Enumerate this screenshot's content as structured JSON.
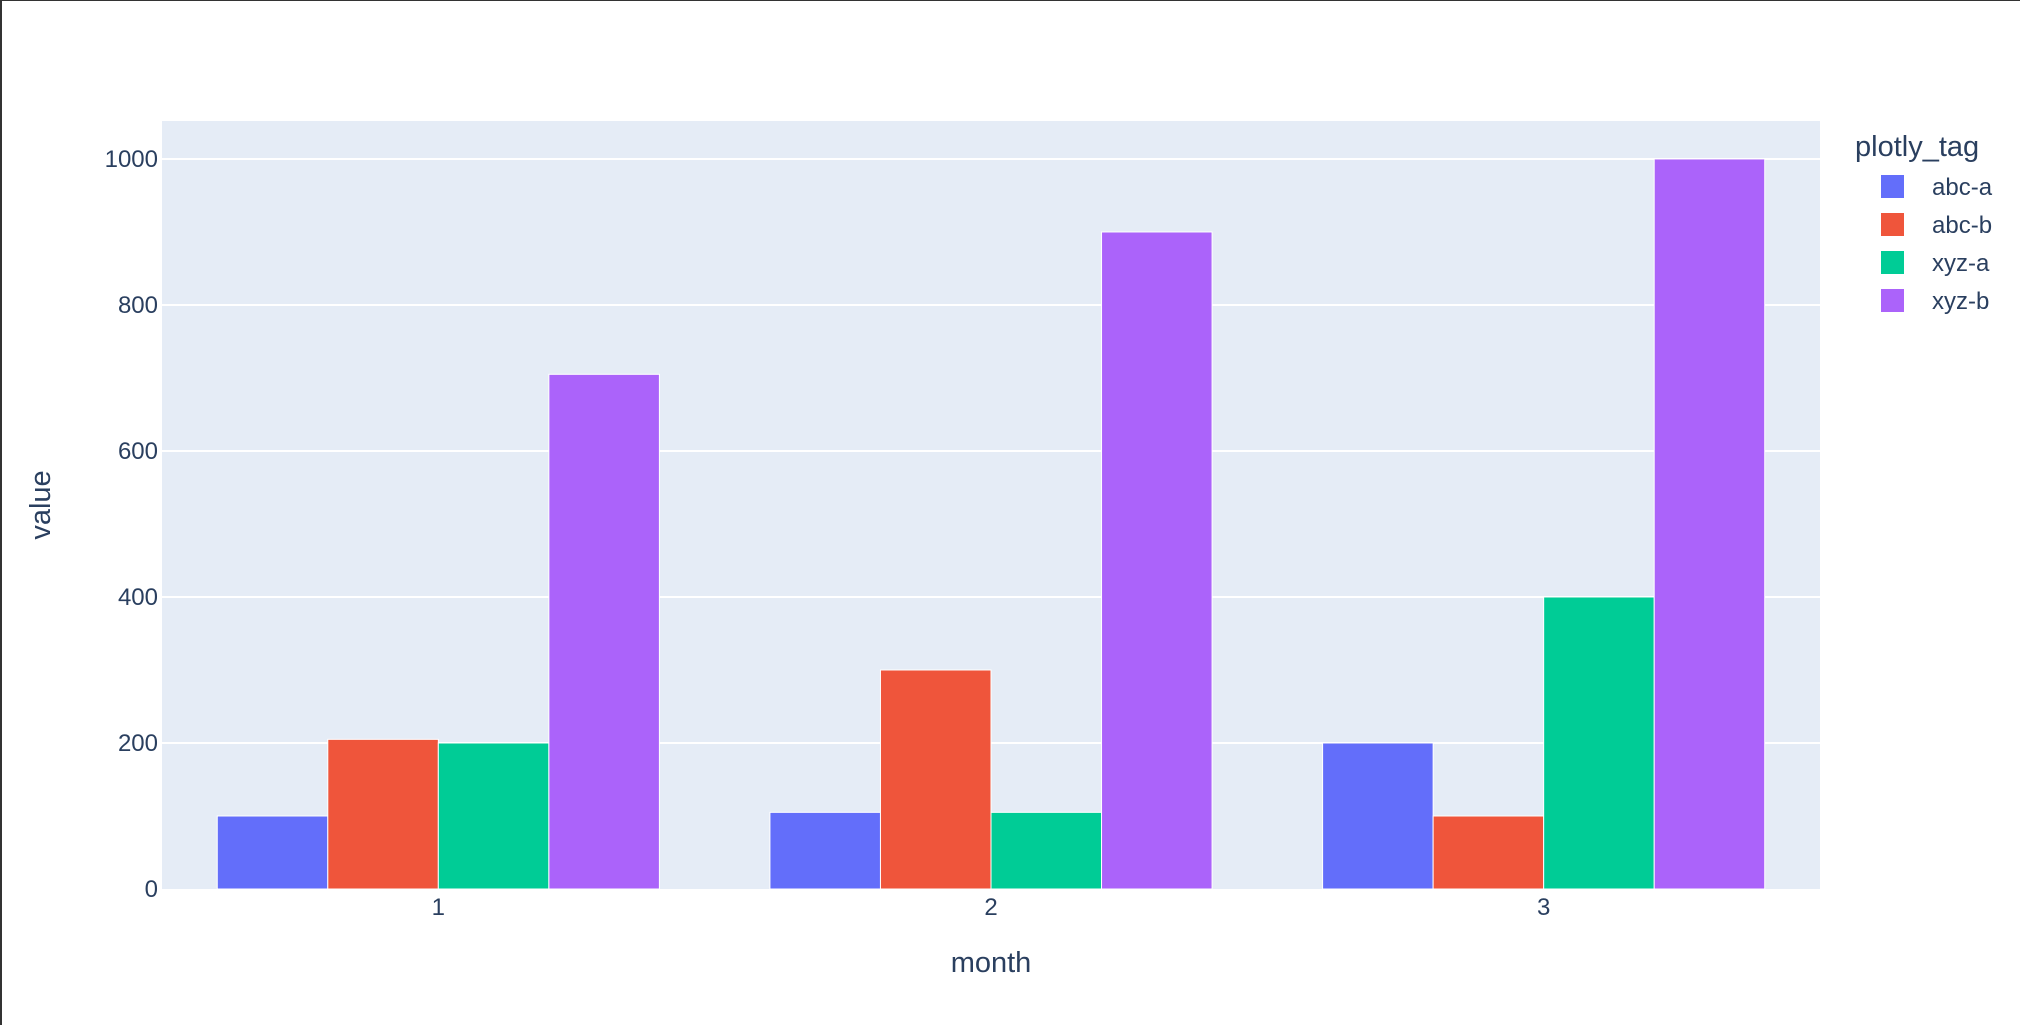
{
  "chart_data": {
    "type": "bar",
    "barmode": "group",
    "categories": [
      "1",
      "2",
      "3"
    ],
    "series": [
      {
        "name": "abc-a",
        "values": [
          100,
          105,
          200
        ],
        "color": "#636efa"
      },
      {
        "name": "abc-b",
        "values": [
          205,
          300,
          100
        ],
        "color": "#ef553b"
      },
      {
        "name": "xyz-a",
        "values": [
          200,
          105,
          400
        ],
        "color": "#00cc96"
      },
      {
        "name": "xyz-b",
        "values": [
          705,
          900,
          1000
        ],
        "color": "#ab63fa"
      }
    ],
    "title": "",
    "xlabel": "month",
    "ylabel": "value",
    "ylim": [
      0,
      1052
    ],
    "yticks": [
      0,
      200,
      400,
      600,
      800,
      1000
    ],
    "legend_title": "plotly_tag",
    "legend_position": "right",
    "grid": true,
    "plot_background": "#e5ecf6",
    "grid_color": "#ffffff"
  }
}
